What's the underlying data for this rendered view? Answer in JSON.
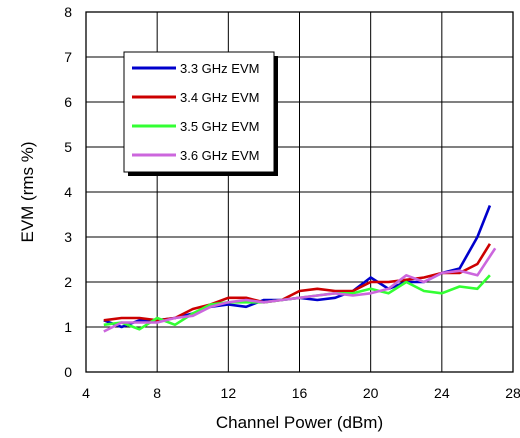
{
  "chart_data": {
    "type": "line",
    "title": "",
    "xlabel": "Channel Power (dBm)",
    "ylabel": "EVM (rms %)",
    "xlim": [
      4,
      28
    ],
    "ylim": [
      0,
      8
    ],
    "xticks": [
      4,
      8,
      12,
      16,
      20,
      24,
      28
    ],
    "yticks": [
      0,
      1,
      2,
      3,
      4,
      5,
      6,
      7,
      8
    ],
    "grid": true,
    "legend_position": "top-left",
    "x": [
      5,
      6,
      7,
      8,
      9,
      10,
      11,
      12,
      13,
      14,
      15,
      16,
      17,
      18,
      19,
      20,
      21,
      22,
      23,
      24,
      25,
      26,
      26.7
    ],
    "series": [
      {
        "name": "3.3 GHz EVM",
        "color": "#0000cc",
        "values": [
          1.15,
          1.0,
          1.15,
          1.15,
          1.2,
          1.3,
          1.45,
          1.5,
          1.45,
          1.6,
          1.6,
          1.65,
          1.6,
          1.65,
          1.8,
          2.1,
          1.85,
          2.0,
          2.0,
          2.2,
          2.3,
          3.0,
          3.7
        ]
      },
      {
        "name": "3.4 GHz EVM",
        "color": "#cc0000",
        "values": [
          1.15,
          1.2,
          1.2,
          1.15,
          1.2,
          1.4,
          1.5,
          1.65,
          1.65,
          1.55,
          1.6,
          1.8,
          1.85,
          1.8,
          1.8,
          2.0,
          2.0,
          2.05,
          2.1,
          2.2,
          2.2,
          2.4,
          2.85
        ]
      },
      {
        "name": "3.5 GHz EVM",
        "color": "#33ff33",
        "values": [
          1.05,
          1.1,
          0.95,
          1.2,
          1.05,
          1.3,
          1.5,
          1.55,
          1.55,
          1.55,
          1.6,
          1.65,
          1.7,
          1.75,
          1.75,
          1.85,
          1.75,
          2.0,
          1.8,
          1.75,
          1.9,
          1.85,
          2.15
        ]
      },
      {
        "name": "3.6 GHz EVM",
        "color": "#cc66dd",
        "x": [
          5,
          6,
          7,
          8,
          9,
          10,
          11,
          12,
          13,
          14,
          15,
          16,
          17,
          18,
          19,
          20,
          21,
          22,
          23,
          24,
          25,
          26,
          27
        ],
        "values": [
          0.9,
          1.1,
          1.1,
          1.1,
          1.2,
          1.25,
          1.45,
          1.55,
          1.6,
          1.55,
          1.6,
          1.65,
          1.7,
          1.75,
          1.7,
          1.75,
          1.85,
          2.15,
          2.0,
          2.2,
          2.25,
          2.15,
          2.75
        ]
      }
    ]
  }
}
